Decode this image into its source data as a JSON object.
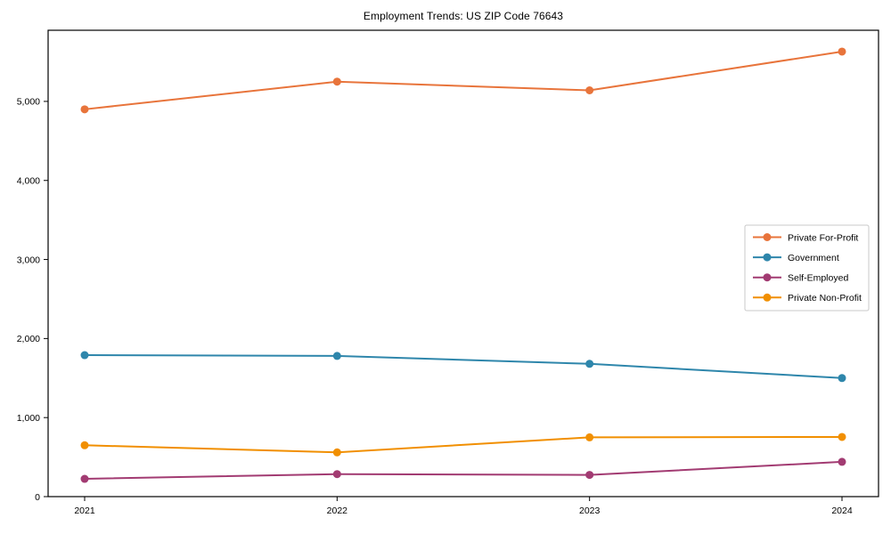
{
  "chart_data": {
    "type": "line",
    "title": "Employment Trends: US ZIP Code 76643",
    "x_categories": [
      "2021",
      "2022",
      "2023",
      "2024"
    ],
    "series": [
      {
        "name": "Private For-Profit",
        "color": "#e8743b",
        "values": [
          4900,
          5250,
          5140,
          5630
        ]
      },
      {
        "name": "Government",
        "color": "#2e86ab",
        "values": [
          1790,
          1780,
          1680,
          1500
        ]
      },
      {
        "name": "Self-Employed",
        "color": "#a23b72",
        "values": [
          225,
          285,
          275,
          440
        ]
      },
      {
        "name": "Private Non-Profit",
        "color": "#f18f01",
        "values": [
          650,
          560,
          750,
          755
        ]
      }
    ],
    "xlabel": "",
    "ylabel": "",
    "ylim": [
      0,
      5900
    ],
    "yticks": [
      0,
      1000,
      2000,
      3000,
      4000,
      5000
    ],
    "ytick_labels": [
      "0",
      "1,000",
      "2,000",
      "3,000",
      "4,000",
      "5,000"
    ],
    "grid": false,
    "legend_position": "center-right",
    "marker": "circle",
    "axis_color": "#000000",
    "legend_border_color": "#c8c8c8",
    "legend_background": "#ffffff"
  }
}
